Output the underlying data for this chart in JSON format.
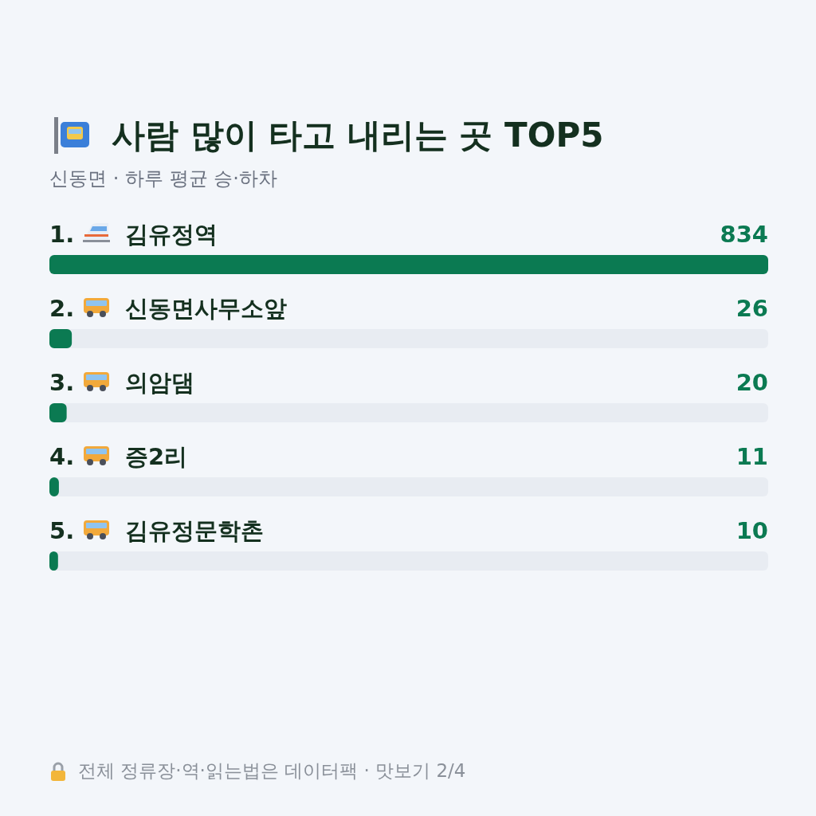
{
  "chart_data": {
    "type": "bar",
    "orientation": "horizontal",
    "title": "사람 많이 타고 내리는 곳 TOP5",
    "subtitle": "신동면 · 하루 평균 승·하차",
    "categories": [
      "1. 김유정역",
      "2. 신동면사무소앞",
      "3. 의암댐",
      "4. 증2리",
      "5. 김유정문학촌"
    ],
    "values": [
      834,
      26,
      20,
      11,
      10
    ],
    "color": "#0b7a52",
    "data_labels": true,
    "annotations": [
      "전체 정류장·역·읽는법은 데이터팩 · 맛보기 2/4"
    ]
  }
}
